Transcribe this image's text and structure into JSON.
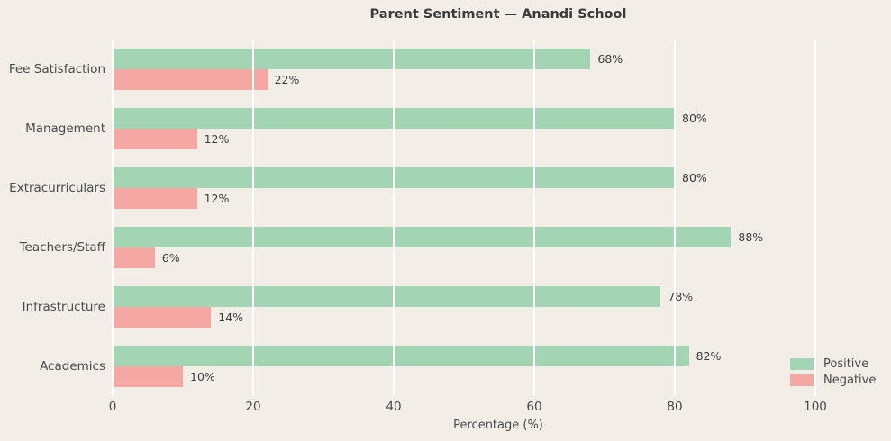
{
  "chart_data": {
    "type": "bar",
    "orientation": "horizontal",
    "title": "Parent Sentiment — Anandi School",
    "xlabel": "Percentage (%)",
    "categories": [
      "Fee Satisfaction",
      "Management",
      "Extracurriculars",
      "Teachers/Staff",
      "Infrastructure",
      "Academics"
    ],
    "categories_order": "top-to-bottom",
    "series": [
      {
        "name": "Positive",
        "color": "#a3d4b4",
        "values": [
          68,
          80,
          80,
          88,
          78,
          82
        ],
        "labels": [
          "68%",
          "80%",
          "80%",
          "88%",
          "78%",
          "82%"
        ]
      },
      {
        "name": "Negative",
        "color": "#f5a7a4",
        "values": [
          22,
          12,
          12,
          6,
          14,
          10
        ],
        "labels": [
          "22%",
          "12%",
          "12%",
          "6%",
          "14%",
          "10%"
        ]
      }
    ],
    "xlim": [
      0,
      110
    ],
    "xticks": [
      "0",
      "20",
      "40",
      "60",
      "80",
      "100"
    ],
    "grid": true,
    "gridline_color": "#ffffff",
    "gridlines_above_bars": true,
    "legend_position": "lower right",
    "background_color": "#f2ede7",
    "text_color": "#4a4a4a"
  }
}
